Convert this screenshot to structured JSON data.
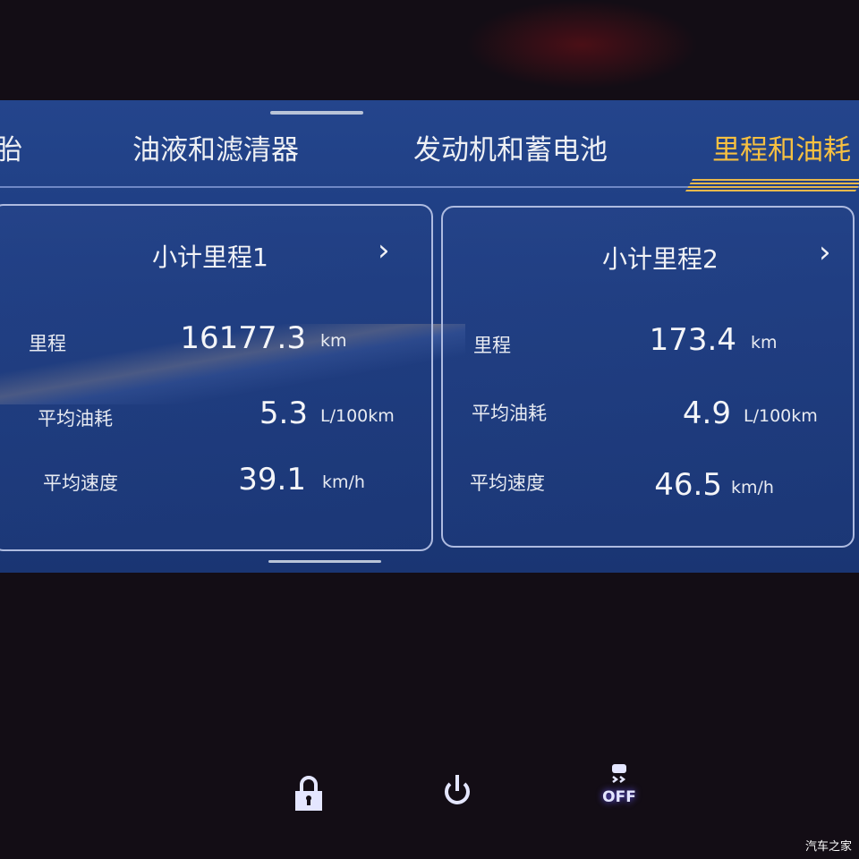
{
  "tabs": [
    {
      "label": "胎",
      "active": false
    },
    {
      "label": "油液和滤清器",
      "active": false
    },
    {
      "label": "发动机和蓄电池",
      "active": false
    },
    {
      "label": "里程和油耗",
      "active": true
    }
  ],
  "trips": [
    {
      "title": "小计里程1",
      "rows": [
        {
          "label": "里程",
          "value": "16177.3",
          "unit": "km"
        },
        {
          "label": "平均油耗",
          "value": "5.3",
          "unit": "L/100km"
        },
        {
          "label": "平均速度",
          "value": "39.1",
          "unit": "km/h"
        }
      ]
    },
    {
      "title": "小计里程2",
      "rows": [
        {
          "label": "里程",
          "value": "173.4",
          "unit": "km"
        },
        {
          "label": "平均油耗",
          "value": "4.9",
          "unit": "L/100km"
        },
        {
          "label": "平均速度",
          "value": "46.5",
          "unit": "km/h"
        }
      ]
    }
  ],
  "chevron": "›",
  "buttons": {
    "lock": "lock-icon",
    "power": "power-icon",
    "esc_off": "OFF"
  },
  "watermark": "汽车之家",
  "colors": {
    "active_tab": "#f6c041",
    "screen": "#1f3c80"
  }
}
